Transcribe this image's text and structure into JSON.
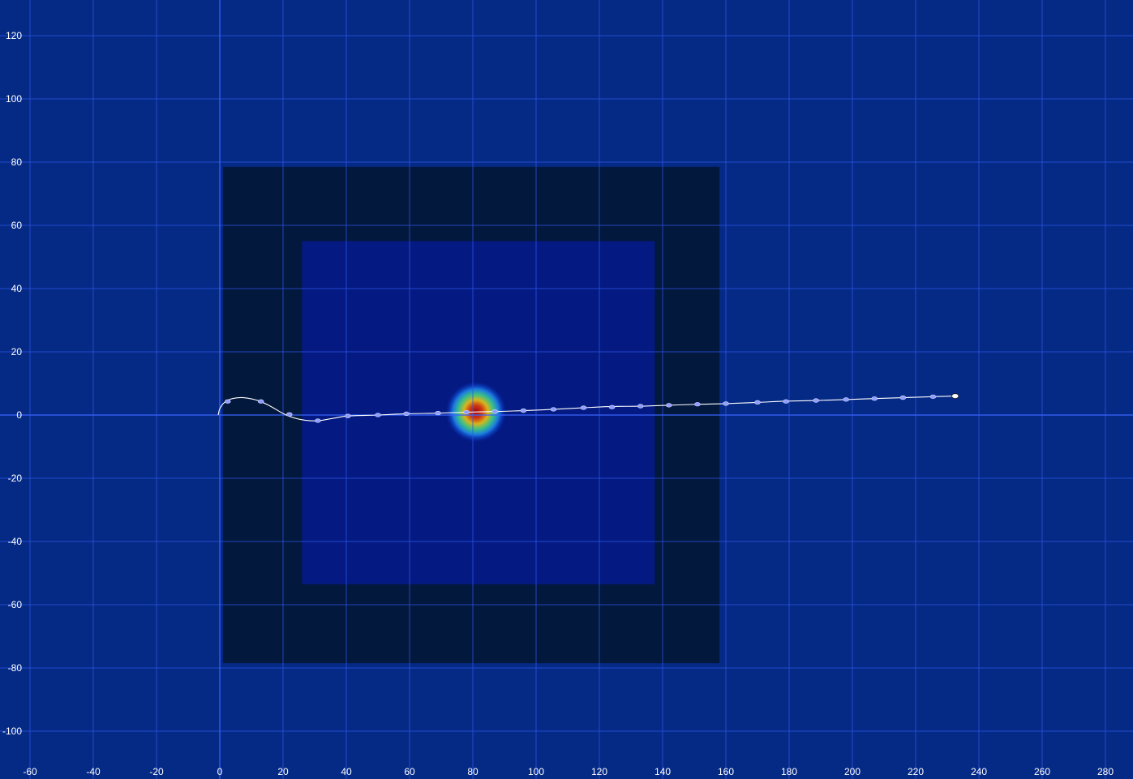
{
  "chart_data": {
    "type": "scatter",
    "title": "",
    "xlabel": "",
    "ylabel": "",
    "xlim": [
      -60,
      285
    ],
    "ylim": [
      -108,
      128
    ],
    "grid": true,
    "x_ticks": [
      -60,
      -40,
      -20,
      0,
      20,
      40,
      60,
      80,
      100,
      120,
      140,
      160,
      180,
      200,
      220,
      240,
      260,
      280
    ],
    "y_ticks": [
      120,
      100,
      80,
      60,
      40,
      20,
      0,
      -20,
      -40,
      -60,
      -80,
      -100
    ],
    "x_tick_labels": [
      "-60",
      "-40",
      "-20",
      "0",
      "20",
      "40",
      "60",
      "80",
      "100",
      "120",
      "140",
      "160",
      "180",
      "200",
      "220",
      "240",
      "260",
      "280"
    ],
    "y_tick_labels": [
      "120",
      "100",
      "80",
      "60",
      "40",
      "20",
      "0",
      "-20",
      "-40",
      "-60",
      "-80",
      "-100"
    ],
    "regions": [
      {
        "name": "outer-zone",
        "x": [
          1,
          158
        ],
        "y": [
          -78.5,
          78.5
        ],
        "color": "#03183d"
      },
      {
        "name": "inner-zone",
        "x": [
          26,
          137.5
        ],
        "y": [
          -53.5,
          55
        ],
        "color": "#041a82"
      }
    ],
    "heat_spot": {
      "x": 81,
      "y": 1,
      "radius": 9.5
    },
    "trajectory": {
      "name": "path",
      "color": "#ffffff",
      "curve": [
        [
          -0.5,
          0
        ],
        [
          0,
          2
        ],
        [
          1.5,
          4
        ],
        [
          4,
          5.2
        ],
        [
          7.5,
          5.5
        ],
        [
          12,
          4.6
        ],
        [
          16,
          2.8
        ],
        [
          21,
          0
        ],
        [
          26,
          -1.5
        ],
        [
          31,
          -1.8
        ],
        [
          36,
          -1
        ],
        [
          40.5,
          -0.3
        ],
        [
          50,
          0
        ],
        [
          59,
          0.4
        ],
        [
          69,
          0.6
        ],
        [
          78,
          0.9
        ],
        [
          87,
          1.1
        ],
        [
          96,
          1.4
        ],
        [
          105.5,
          1.8
        ],
        [
          115,
          2.3
        ],
        [
          124,
          2.7
        ],
        [
          133,
          2.8
        ],
        [
          142,
          3.1
        ],
        [
          151,
          3.4
        ],
        [
          160,
          3.6
        ],
        [
          170,
          4
        ],
        [
          179,
          4.4
        ],
        [
          188.5,
          4.6
        ],
        [
          198,
          4.9
        ],
        [
          207,
          5.2
        ],
        [
          216,
          5.5
        ],
        [
          225.5,
          5.8
        ],
        [
          232.5,
          6
        ]
      ],
      "markers": [
        [
          2.5,
          4.3
        ],
        [
          13,
          4.3
        ],
        [
          22,
          0.2
        ],
        [
          31,
          -1.8
        ],
        [
          40.5,
          -0.3
        ],
        [
          50,
          0
        ],
        [
          59,
          0.4
        ],
        [
          69,
          0.6
        ],
        [
          78,
          0.9
        ],
        [
          87,
          1.1
        ],
        [
          96,
          1.4
        ],
        [
          105.5,
          1.8
        ],
        [
          115,
          2.3
        ],
        [
          124,
          2.5
        ],
        [
          133,
          2.8
        ],
        [
          142,
          3.1
        ],
        [
          151,
          3.4
        ],
        [
          160,
          3.6
        ],
        [
          170,
          4
        ],
        [
          179,
          4.3
        ],
        [
          188.5,
          4.6
        ],
        [
          198,
          4.9
        ],
        [
          207,
          5.2
        ],
        [
          216,
          5.5
        ],
        [
          225.5,
          5.8
        ]
      ],
      "end_marker": [
        232.5,
        6
      ]
    }
  }
}
